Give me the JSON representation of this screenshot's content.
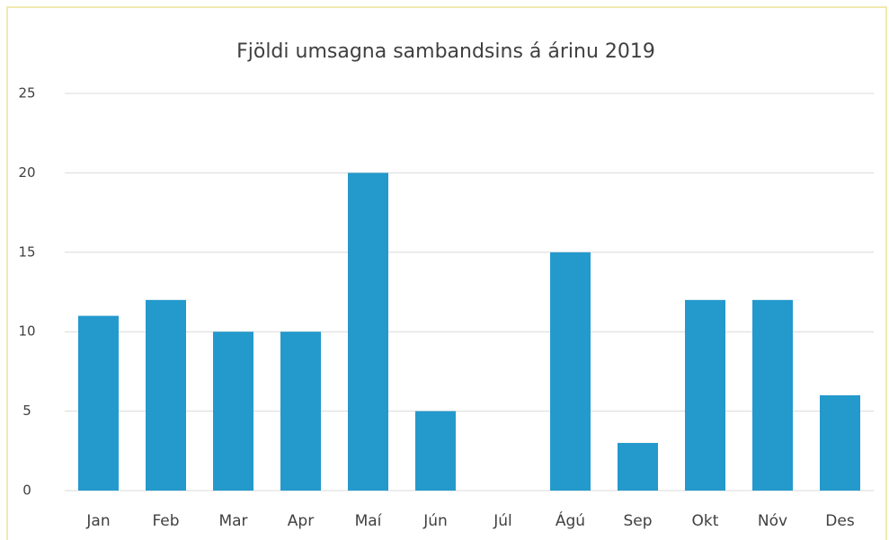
{
  "chart_data": {
    "type": "bar",
    "title": "Fjöldi umsagna sambandsins á árinu 2019",
    "categories": [
      "Jan",
      "Feb",
      "Mar",
      "Apr",
      "Maí",
      "Jún",
      "Júl",
      "Ágú",
      "Sep",
      "Okt",
      "Nóv",
      "Des"
    ],
    "values": [
      11,
      12,
      10,
      10,
      20,
      5,
      0,
      15,
      3,
      12,
      12,
      6
    ],
    "color": "#2499cc",
    "ylim": [
      0,
      25
    ],
    "yticks": [
      0,
      5,
      10,
      15,
      20,
      25
    ],
    "grid": true
  }
}
